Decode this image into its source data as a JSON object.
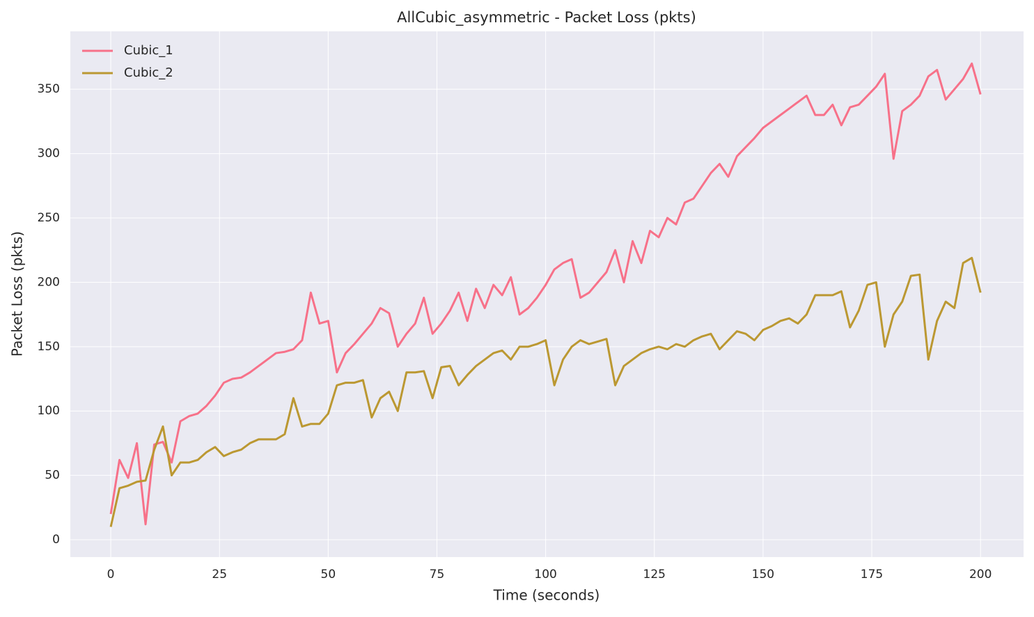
{
  "chart_data": {
    "type": "line",
    "title": "AllCubic_asymmetric - Packet Loss (pkts)",
    "x_label": "Time (seconds)",
    "y_label": "Packet Loss (pkts)",
    "x": [
      0,
      2,
      4,
      6,
      8,
      10,
      12,
      14,
      16,
      18,
      20,
      22,
      24,
      26,
      28,
      30,
      32,
      34,
      36,
      38,
      40,
      42,
      44,
      46,
      48,
      50,
      52,
      54,
      56,
      58,
      60,
      62,
      64,
      66,
      68,
      70,
      72,
      74,
      76,
      78,
      80,
      82,
      84,
      86,
      88,
      90,
      92,
      94,
      96,
      98,
      100,
      102,
      104,
      106,
      108,
      110,
      112,
      114,
      116,
      118,
      120,
      122,
      124,
      126,
      128,
      130,
      132,
      134,
      136,
      138,
      140,
      142,
      144,
      146,
      148,
      150,
      152,
      154,
      156,
      158,
      160,
      162,
      164,
      166,
      168,
      170,
      172,
      174,
      176,
      178,
      180,
      182,
      184,
      186,
      188,
      190,
      192,
      194,
      196,
      198,
      200
    ],
    "series": [
      {
        "name": "Cubic_1",
        "color": "#f77189",
        "values": [
          20,
          62,
          48,
          75,
          12,
          74,
          76,
          60,
          92,
          96,
          98,
          104,
          112,
          122,
          125,
          126,
          130,
          135,
          140,
          145,
          146,
          148,
          155,
          192,
          168,
          170,
          130,
          145,
          152,
          160,
          168,
          180,
          176,
          150,
          160,
          168,
          188,
          160,
          168,
          178,
          192,
          170,
          195,
          180,
          198,
          190,
          204,
          175,
          180,
          188,
          198,
          210,
          215,
          218,
          188,
          192,
          200,
          208,
          225,
          200,
          232,
          215,
          240,
          235,
          250,
          245,
          262,
          265,
          275,
          285,
          292,
          282,
          298,
          305,
          312,
          320,
          325,
          330,
          335,
          340,
          345,
          330,
          330,
          338,
          322,
          336,
          338,
          345,
          352,
          362,
          296,
          333,
          338,
          345,
          360,
          365,
          342,
          350,
          358,
          370,
          346
        ]
      },
      {
        "name": "Cubic_2",
        "color": "#bb9832",
        "values": [
          10,
          40,
          42,
          45,
          46,
          70,
          88,
          50,
          60,
          60,
          62,
          68,
          72,
          65,
          68,
          70,
          75,
          78,
          78,
          78,
          82,
          110,
          88,
          90,
          90,
          98,
          120,
          122,
          122,
          124,
          95,
          110,
          115,
          100,
          130,
          130,
          131,
          110,
          134,
          135,
          120,
          128,
          135,
          140,
          145,
          147,
          140,
          150,
          150,
          152,
          155,
          120,
          140,
          150,
          155,
          152,
          154,
          156,
          120,
          135,
          140,
          145,
          148,
          150,
          148,
          152,
          150,
          155,
          158,
          160,
          148,
          155,
          162,
          160,
          155,
          163,
          166,
          170,
          172,
          168,
          175,
          190,
          190,
          190,
          193,
          165,
          178,
          198,
          200,
          150,
          175,
          185,
          205,
          206,
          140,
          170,
          185,
          180,
          215,
          219,
          192
        ]
      }
    ],
    "xlim": [
      -9.3,
      209.9
    ],
    "ylim": [
      -13.5,
      395
    ],
    "xticks": [
      0,
      25,
      50,
      75,
      100,
      125,
      150,
      175,
      200
    ],
    "yticks": [
      0,
      50,
      100,
      150,
      200,
      250,
      300,
      350
    ],
    "grid": true,
    "legend": "upper left"
  }
}
